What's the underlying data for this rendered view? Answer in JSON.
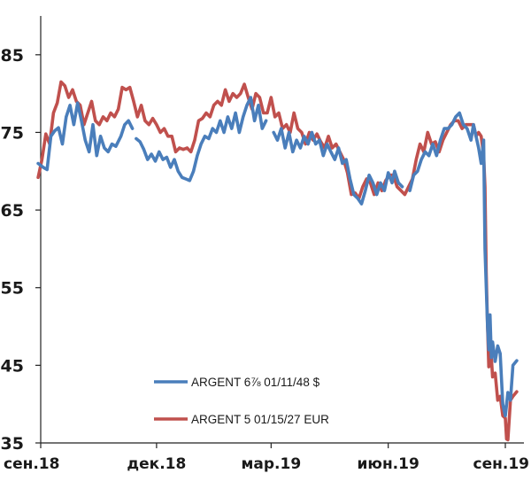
{
  "chart_data": {
    "type": "line",
    "title": "",
    "xlabel": "",
    "ylabel": "",
    "ylim": [
      35,
      90
    ],
    "grid": false,
    "legend_position": "bottom-center",
    "x_ticks": [
      {
        "label": "сен.18",
        "date": "2018-09-01"
      },
      {
        "label": "дек.18",
        "date": "2018-12-01"
      },
      {
        "label": "мар.19",
        "date": "2019-03-01"
      },
      {
        "label": "июн.19",
        "date": "2019-06-01"
      },
      {
        "label": "сен.19",
        "date": "2019-09-01"
      }
    ],
    "y_ticks": [
      35,
      45,
      55,
      65,
      75,
      85
    ],
    "series": [
      {
        "name": "ARGENT 6⅞ 01/11/48 $",
        "color": "#4a7ebb",
        "points": [
          [
            "2018-08-30",
            71
          ],
          [
            "2018-09-03",
            70.5
          ],
          [
            "2018-09-06",
            70.2
          ],
          [
            "2018-09-09",
            74.5
          ],
          [
            "2018-09-12",
            75.2
          ],
          [
            "2018-09-15",
            75.6
          ],
          [
            "2018-09-18",
            73.5
          ],
          [
            "2018-09-21",
            77
          ],
          [
            "2018-09-24",
            78.5
          ],
          [
            "2018-09-27",
            76
          ],
          [
            "2018-09-30",
            78.8
          ],
          [
            "2018-10-03",
            76.5
          ],
          [
            "2018-10-06",
            74
          ],
          [
            "2018-10-09",
            72.5
          ],
          [
            "2018-10-12",
            76
          ],
          [
            "2018-10-15",
            72
          ],
          [
            "2018-10-18",
            74.5
          ],
          [
            "2018-10-21",
            73
          ],
          [
            "2018-10-24",
            72.5
          ],
          [
            "2018-10-27",
            73.5
          ],
          [
            "2018-10-30",
            73.2
          ],
          [
            "2018-11-03",
            74.5
          ],
          [
            "2018-11-06",
            76
          ],
          [
            "2018-11-09",
            76.5
          ],
          [
            "2018-11-12",
            75.5
          ],
          [
            null,
            null
          ],
          [
            "2018-11-15",
            74.2
          ],
          [
            "2018-11-18",
            73.8
          ],
          [
            "2018-11-21",
            72.8
          ],
          [
            "2018-11-24",
            71.5
          ],
          [
            "2018-11-27",
            72.2
          ],
          [
            "2018-11-30",
            71.3
          ],
          [
            "2018-12-03",
            72.5
          ],
          [
            "2018-12-06",
            71.5
          ],
          [
            "2018-12-09",
            71.8
          ],
          [
            "2018-12-12",
            70.5
          ],
          [
            "2018-12-15",
            71.5
          ],
          [
            "2018-12-18",
            70
          ],
          [
            "2018-12-21",
            69.2
          ],
          [
            "2018-12-24",
            69
          ],
          [
            "2018-12-27",
            68.8
          ],
          [
            "2018-12-30",
            70
          ],
          [
            "2019-01-02",
            72
          ],
          [
            "2019-01-05",
            73.5
          ],
          [
            "2019-01-08",
            74.5
          ],
          [
            "2019-01-11",
            74.2
          ],
          [
            "2019-01-14",
            75.5
          ],
          [
            "2019-01-17",
            75
          ],
          [
            "2019-01-20",
            76.5
          ],
          [
            "2019-01-23",
            75
          ],
          [
            "2019-01-26",
            77
          ],
          [
            "2019-01-29",
            75.5
          ],
          [
            "2019-02-01",
            77.5
          ],
          [
            "2019-02-04",
            75
          ],
          [
            "2019-02-07",
            77
          ],
          [
            "2019-02-10",
            78.5
          ],
          [
            "2019-02-13",
            79.5
          ],
          [
            "2019-02-16",
            76.5
          ],
          [
            "2019-02-19",
            78.5
          ],
          [
            "2019-02-22",
            75.5
          ],
          [
            "2019-02-25",
            76.5
          ],
          [
            null,
            null
          ],
          [
            "2019-03-03",
            75
          ],
          [
            "2019-03-06",
            74
          ],
          [
            "2019-03-09",
            75.5
          ],
          [
            "2019-03-12",
            73
          ],
          [
            "2019-03-15",
            75
          ],
          [
            "2019-03-18",
            72.5
          ],
          [
            "2019-03-21",
            74
          ],
          [
            "2019-03-24",
            73
          ],
          [
            "2019-03-27",
            74.5
          ],
          [
            "2019-03-30",
            73.5
          ],
          [
            "2019-04-02",
            75
          ],
          [
            "2019-04-05",
            73.5
          ],
          [
            "2019-04-08",
            74
          ],
          [
            "2019-04-11",
            72
          ],
          [
            "2019-04-14",
            73.5
          ],
          [
            "2019-04-17",
            72.5
          ],
          [
            "2019-04-20",
            71.5
          ],
          [
            "2019-04-23",
            73
          ],
          [
            "2019-04-26",
            71
          ],
          [
            "2019-04-29",
            71.5
          ],
          [
            "2019-05-02",
            69
          ],
          [
            "2019-05-05",
            67
          ],
          [
            "2019-05-08",
            66.5
          ],
          [
            "2019-05-11",
            65.8
          ],
          [
            "2019-05-14",
            67.5
          ],
          [
            "2019-05-17",
            69.5
          ],
          [
            "2019-05-20",
            68.5
          ],
          [
            "2019-05-23",
            67
          ],
          [
            "2019-05-26",
            68.5
          ],
          [
            "2019-05-29",
            67.5
          ],
          [
            "2019-06-01",
            69.8
          ],
          [
            "2019-06-04",
            68.5
          ],
          [
            "2019-06-06",
            70
          ],
          [
            "2019-06-09",
            68.5
          ],
          [
            "2019-06-12",
            68
          ],
          [
            null,
            null
          ],
          [
            "2019-06-18",
            67.5
          ],
          [
            "2019-06-21",
            69.5
          ],
          [
            "2019-06-24",
            70
          ],
          [
            "2019-06-27",
            71.5
          ],
          [
            "2019-06-30",
            72.5
          ],
          [
            "2019-07-03",
            72
          ],
          [
            "2019-07-06",
            73.5
          ],
          [
            "2019-07-09",
            72
          ],
          [
            "2019-07-12",
            74
          ],
          [
            "2019-07-15",
            75.5
          ],
          [
            "2019-07-18",
            75.5
          ],
          [
            "2019-07-21",
            76
          ],
          [
            "2019-07-24",
            77
          ],
          [
            "2019-07-27",
            77.5
          ],
          [
            "2019-07-30",
            76
          ],
          [
            "2019-08-02",
            75.5
          ],
          [
            "2019-08-05",
            74
          ],
          [
            "2019-08-07",
            76
          ],
          [
            "2019-08-09",
            74.5
          ],
          [
            "2019-08-11",
            73
          ],
          [
            "2019-08-13",
            71
          ],
          [
            "2019-08-15",
            74
          ],
          [
            "2019-08-16",
            60
          ],
          [
            "2019-08-18",
            50
          ],
          [
            "2019-08-19",
            47
          ],
          [
            "2019-08-20",
            51.5
          ],
          [
            "2019-08-21",
            46
          ],
          [
            "2019-08-22",
            48
          ],
          [
            "2019-08-24",
            45.5
          ],
          [
            "2019-08-26",
            47.5
          ],
          [
            "2019-08-28",
            46.5
          ],
          [
            "2019-08-30",
            40
          ],
          [
            "2019-09-01",
            38.5
          ],
          [
            "2019-09-03",
            41.5
          ],
          [
            "2019-09-05",
            40.5
          ],
          [
            "2019-09-07",
            45
          ],
          [
            "2019-09-10",
            45.6
          ]
        ]
      },
      {
        "name": "ARGENT 5 01/15/27 EUR",
        "color": "#c0504d",
        "points": [
          [
            "2018-08-30",
            69.2
          ],
          [
            "2018-09-02",
            71.5
          ],
          [
            "2018-09-05",
            74.8
          ],
          [
            "2018-09-08",
            73.5
          ],
          [
            "2018-09-11",
            77.5
          ],
          [
            "2018-09-14",
            78.8
          ],
          [
            "2018-09-17",
            81.5
          ],
          [
            "2018-09-20",
            81
          ],
          [
            "2018-09-23",
            79.5
          ],
          [
            "2018-09-26",
            80.5
          ],
          [
            "2018-09-29",
            79
          ],
          [
            "2018-10-02",
            78.5
          ],
          [
            "2018-10-05",
            76
          ],
          [
            "2018-10-08",
            77.5
          ],
          [
            "2018-10-11",
            79
          ],
          [
            "2018-10-14",
            76.5
          ],
          [
            "2018-10-17",
            76
          ],
          [
            "2018-10-20",
            77
          ],
          [
            "2018-10-23",
            76.5
          ],
          [
            "2018-10-26",
            77.5
          ],
          [
            "2018-10-29",
            77
          ],
          [
            "2018-11-01",
            78
          ],
          [
            "2018-11-04",
            80.8
          ],
          [
            "2018-11-07",
            80.5
          ],
          [
            "2018-11-10",
            80.8
          ],
          [
            "2018-11-13",
            79
          ],
          [
            "2018-11-16",
            77
          ],
          [
            "2018-11-19",
            78.5
          ],
          [
            "2018-11-22",
            76.5
          ],
          [
            "2018-11-25",
            76
          ],
          [
            "2018-11-28",
            76.8
          ],
          [
            "2018-12-01",
            76
          ],
          [
            "2018-12-04",
            75
          ],
          [
            "2018-12-07",
            75.5
          ],
          [
            "2018-12-10",
            74.5
          ],
          [
            "2018-12-13",
            74.5
          ],
          [
            "2018-12-16",
            72.5
          ],
          [
            "2018-12-19",
            73
          ],
          [
            "2018-12-22",
            72.8
          ],
          [
            "2018-12-25",
            73
          ],
          [
            "2018-12-28",
            72.5
          ],
          [
            "2018-12-31",
            74
          ],
          [
            "2019-01-03",
            76.5
          ],
          [
            "2019-01-06",
            76.8
          ],
          [
            "2019-01-09",
            77.5
          ],
          [
            "2019-01-12",
            77
          ],
          [
            "2019-01-15",
            78.5
          ],
          [
            "2019-01-18",
            79
          ],
          [
            "2019-01-21",
            78.5
          ],
          [
            "2019-01-24",
            80.5
          ],
          [
            "2019-01-27",
            79
          ],
          [
            "2019-01-30",
            80
          ],
          [
            "2019-02-02",
            79.5
          ],
          [
            "2019-02-05",
            80
          ],
          [
            "2019-02-08",
            81.2
          ],
          [
            "2019-02-11",
            79.5
          ],
          [
            "2019-02-14",
            78
          ],
          [
            "2019-02-17",
            80
          ],
          [
            "2019-02-20",
            79.5
          ],
          [
            "2019-02-23",
            77.5
          ],
          [
            "2019-02-26",
            77.5
          ],
          [
            "2019-03-01",
            79.5
          ],
          [
            "2019-03-04",
            77
          ],
          [
            "2019-03-07",
            77.5
          ],
          [
            "2019-03-10",
            75.5
          ],
          [
            "2019-03-13",
            76
          ],
          [
            "2019-03-16",
            75
          ],
          [
            "2019-03-19",
            77.5
          ],
          [
            "2019-03-22",
            75.5
          ],
          [
            "2019-03-25",
            75
          ],
          [
            "2019-03-28",
            73.5
          ],
          [
            "2019-03-31",
            75
          ],
          [
            "2019-04-03",
            74
          ],
          [
            "2019-04-06",
            74.8
          ],
          [
            "2019-04-09",
            73.8
          ],
          [
            "2019-04-12",
            73
          ],
          [
            "2019-04-15",
            74.5
          ],
          [
            "2019-04-18",
            73
          ],
          [
            "2019-04-21",
            73.5
          ],
          [
            "2019-04-24",
            72.5
          ],
          [
            "2019-04-27",
            71.5
          ],
          [
            "2019-04-30",
            69.8
          ],
          [
            "2019-05-03",
            67
          ],
          [
            "2019-05-06",
            67.2
          ],
          [
            "2019-05-09",
            66.5
          ],
          [
            "2019-05-12",
            68
          ],
          [
            "2019-05-15",
            69
          ],
          [
            "2019-05-18",
            68.5
          ],
          [
            "2019-05-21",
            67
          ],
          [
            "2019-05-24",
            68.5
          ],
          [
            "2019-05-27",
            67.5
          ],
          [
            "2019-05-30",
            68.8
          ],
          [
            "2019-06-02",
            69.5
          ],
          [
            "2019-06-05",
            69.5
          ],
          [
            "2019-06-08",
            68
          ],
          [
            "2019-06-11",
            67.5
          ],
          [
            "2019-06-14",
            67
          ],
          [
            "2019-06-17",
            68
          ],
          [
            "2019-06-20",
            69
          ],
          [
            "2019-06-23",
            71.5
          ],
          [
            "2019-06-26",
            73.5
          ],
          [
            "2019-06-29",
            72.5
          ],
          [
            "2019-07-02",
            75
          ],
          [
            "2019-07-05",
            73.5
          ],
          [
            "2019-07-08",
            73.8
          ],
          [
            "2019-07-11",
            72.5
          ],
          [
            "2019-07-14",
            74
          ],
          [
            "2019-07-17",
            75
          ],
          [
            "2019-07-20",
            76
          ],
          [
            "2019-07-23",
            76.5
          ],
          [
            "2019-07-26",
            76.5
          ],
          [
            "2019-07-29",
            75.5
          ],
          [
            "2019-08-01",
            76
          ],
          [
            "2019-08-04",
            76
          ],
          [
            "2019-08-07",
            76
          ],
          [
            "2019-08-09",
            74.5
          ],
          [
            "2019-08-11",
            75
          ],
          [
            "2019-08-13",
            74.5
          ],
          [
            "2019-08-15",
            72
          ],
          [
            "2019-08-16",
            68
          ],
          [
            "2019-08-17",
            57
          ],
          [
            "2019-08-18",
            50
          ],
          [
            "2019-08-19",
            44.8
          ],
          [
            "2019-08-20",
            48.5
          ],
          [
            "2019-08-21",
            46
          ],
          [
            "2019-08-22",
            43.5
          ],
          [
            "2019-08-24",
            44
          ],
          [
            "2019-08-26",
            40.5
          ],
          [
            "2019-08-28",
            41
          ],
          [
            "2019-08-30",
            38.5
          ],
          [
            "2019-09-01",
            38.2
          ],
          [
            "2019-09-02",
            35.5
          ],
          [
            "2019-09-03",
            35.4
          ],
          [
            "2019-09-05",
            40.5
          ],
          [
            "2019-09-07",
            41
          ],
          [
            "2019-09-10",
            41.6
          ]
        ]
      }
    ]
  }
}
